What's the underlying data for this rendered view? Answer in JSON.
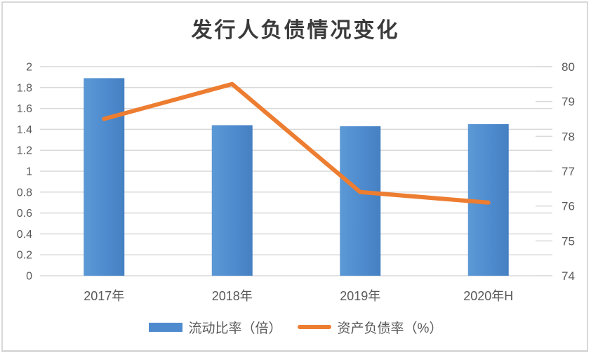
{
  "chart_data": {
    "type": "bar+line",
    "title": "发行人负债情况变化",
    "categories": [
      "2017年",
      "2018年",
      "2019年",
      "2020年H"
    ],
    "series": [
      {
        "name": "流动比率（倍）",
        "type": "bar",
        "axis": "left",
        "values": [
          1.89,
          1.44,
          1.43,
          1.45
        ]
      },
      {
        "name": "资产负债率（%）",
        "type": "line",
        "axis": "right",
        "values": [
          78.5,
          79.5,
          76.4,
          76.1
        ]
      }
    ],
    "left_axis": {
      "min": 0,
      "max": 2,
      "step": 0.2,
      "tick_labels": [
        "2",
        "1.8",
        "1.6",
        "1.4",
        "1.2",
        "1",
        "0.8",
        "0.6",
        "0.4",
        "0.2",
        "0"
      ]
    },
    "right_axis": {
      "min": 74,
      "max": 80,
      "step": 1,
      "tick_labels": [
        "80",
        "79",
        "78",
        "77",
        "76",
        "75",
        "74"
      ]
    },
    "grid": true,
    "legend_position": "bottom"
  },
  "legend": {
    "items": [
      {
        "label": "流动比率（倍）",
        "swatch": "bar-swatch"
      },
      {
        "label": "资产负债率（%）",
        "swatch": "line-swatch"
      }
    ]
  },
  "colors": {
    "bar": "#4E8BCE",
    "bar_light": "#5C99D6",
    "bar_dark": "#4580C2",
    "line": "#ED7D31",
    "grid": "#D9D9D9",
    "axis_text": "#595959",
    "title_text": "#3A3A3A",
    "panel_border": "#D9D9D9"
  }
}
